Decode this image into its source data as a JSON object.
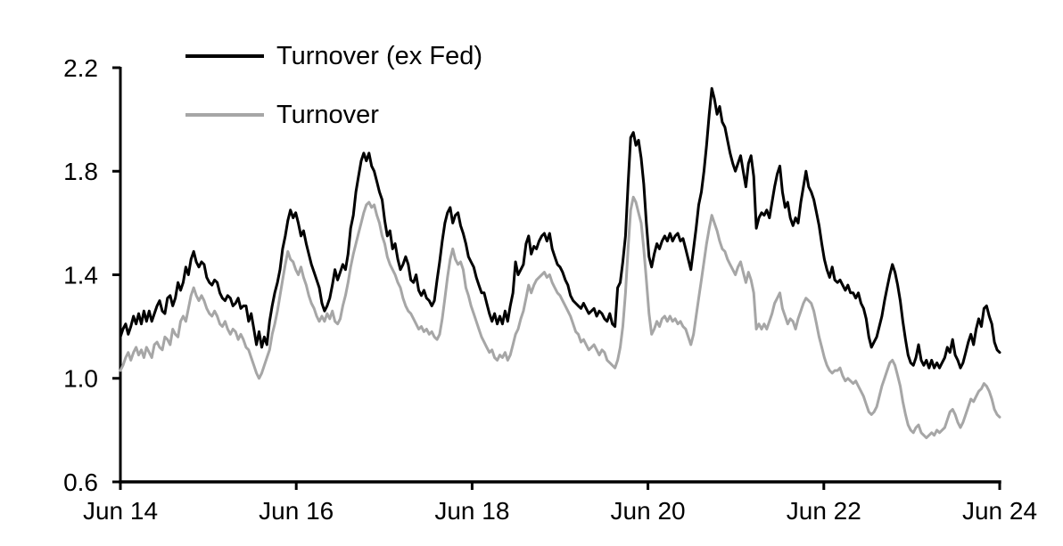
{
  "page": {
    "background": "#ffffff"
  },
  "chart_data": {
    "type": "line",
    "title": "",
    "xlabel": "",
    "ylabel": "",
    "grid": "off",
    "legend_position": "top-left-inside",
    "x_axis": {
      "tick_labels": [
        "Jun 14",
        "Jun 16",
        "Jun 18",
        "Jun 20",
        "Jun 22",
        "Jun 24"
      ],
      "unit": "date, Jun 2014 to Jun 2024, values sampled uniformly across this span"
    },
    "y_axis": {
      "tick_labels": [
        "0.6",
        "1.0",
        "1.4",
        "1.8",
        "2.2"
      ],
      "range": [
        0.6,
        2.2
      ]
    },
    "axis_color": "#000000",
    "series": [
      {
        "name": "Turnover (ex Fed)",
        "color": "#000000",
        "values": [
          1.16,
          1.19,
          1.21,
          1.17,
          1.2,
          1.24,
          1.21,
          1.25,
          1.21,
          1.26,
          1.22,
          1.26,
          1.22,
          1.25,
          1.28,
          1.3,
          1.26,
          1.25,
          1.31,
          1.32,
          1.28,
          1.31,
          1.37,
          1.34,
          1.37,
          1.43,
          1.4,
          1.46,
          1.49,
          1.45,
          1.43,
          1.45,
          1.44,
          1.39,
          1.37,
          1.36,
          1.38,
          1.37,
          1.33,
          1.31,
          1.3,
          1.32,
          1.31,
          1.28,
          1.29,
          1.31,
          1.27,
          1.28,
          1.28,
          1.22,
          1.25,
          1.19,
          1.13,
          1.18,
          1.12,
          1.16,
          1.13,
          1.22,
          1.28,
          1.33,
          1.37,
          1.42,
          1.5,
          1.55,
          1.61,
          1.65,
          1.62,
          1.64,
          1.6,
          1.55,
          1.57,
          1.52,
          1.48,
          1.44,
          1.41,
          1.38,
          1.35,
          1.29,
          1.26,
          1.28,
          1.31,
          1.36,
          1.42,
          1.38,
          1.41,
          1.44,
          1.42,
          1.48,
          1.58,
          1.63,
          1.72,
          1.78,
          1.84,
          1.87,
          1.84,
          1.87,
          1.82,
          1.8,
          1.76,
          1.72,
          1.69,
          1.61,
          1.55,
          1.57,
          1.5,
          1.52,
          1.46,
          1.42,
          1.44,
          1.47,
          1.44,
          1.38,
          1.37,
          1.4,
          1.34,
          1.32,
          1.34,
          1.31,
          1.3,
          1.28,
          1.3,
          1.38,
          1.45,
          1.53,
          1.6,
          1.64,
          1.66,
          1.6,
          1.63,
          1.64,
          1.59,
          1.56,
          1.52,
          1.47,
          1.45,
          1.43,
          1.39,
          1.36,
          1.33,
          1.33,
          1.29,
          1.25,
          1.22,
          1.25,
          1.21,
          1.24,
          1.21,
          1.26,
          1.22,
          1.28,
          1.33,
          1.45,
          1.4,
          1.42,
          1.44,
          1.52,
          1.55,
          1.48,
          1.51,
          1.5,
          1.53,
          1.55,
          1.56,
          1.53,
          1.56,
          1.5,
          1.47,
          1.44,
          1.43,
          1.41,
          1.38,
          1.36,
          1.32,
          1.3,
          1.29,
          1.28,
          1.27,
          1.29,
          1.27,
          1.25,
          1.26,
          1.27,
          1.24,
          1.26,
          1.25,
          1.23,
          1.22,
          1.25,
          1.21,
          1.2,
          1.35,
          1.37,
          1.45,
          1.55,
          1.75,
          1.93,
          1.95,
          1.9,
          1.92,
          1.85,
          1.75,
          1.6,
          1.47,
          1.43,
          1.48,
          1.52,
          1.5,
          1.53,
          1.55,
          1.53,
          1.56,
          1.53,
          1.55,
          1.56,
          1.53,
          1.54,
          1.5,
          1.46,
          1.42,
          1.5,
          1.58,
          1.67,
          1.72,
          1.8,
          1.9,
          2.02,
          2.12,
          2.08,
          2.02,
          2.05,
          1.99,
          1.97,
          1.92,
          1.87,
          1.83,
          1.8,
          1.83,
          1.86,
          1.8,
          1.74,
          1.83,
          1.86,
          1.78,
          1.58,
          1.62,
          1.64,
          1.63,
          1.65,
          1.62,
          1.68,
          1.74,
          1.79,
          1.82,
          1.72,
          1.66,
          1.68,
          1.62,
          1.59,
          1.62,
          1.6,
          1.68,
          1.74,
          1.8,
          1.74,
          1.72,
          1.69,
          1.64,
          1.59,
          1.52,
          1.46,
          1.42,
          1.39,
          1.43,
          1.38,
          1.37,
          1.38,
          1.36,
          1.34,
          1.36,
          1.33,
          1.33,
          1.31,
          1.33,
          1.29,
          1.27,
          1.23,
          1.16,
          1.12,
          1.14,
          1.16,
          1.2,
          1.24,
          1.3,
          1.35,
          1.4,
          1.44,
          1.41,
          1.36,
          1.3,
          1.22,
          1.15,
          1.09,
          1.06,
          1.05,
          1.08,
          1.13,
          1.07,
          1.05,
          1.07,
          1.04,
          1.07,
          1.04,
          1.06,
          1.04,
          1.06,
          1.08,
          1.12,
          1.1,
          1.15,
          1.09,
          1.07,
          1.04,
          1.06,
          1.1,
          1.14,
          1.17,
          1.13,
          1.19,
          1.23,
          1.2,
          1.27,
          1.28,
          1.24,
          1.21,
          1.14,
          1.11,
          1.1
        ]
      },
      {
        "name": "Turnover",
        "color": "#a6a6a6",
        "values": [
          1.03,
          1.05,
          1.08,
          1.1,
          1.07,
          1.1,
          1.12,
          1.09,
          1.11,
          1.08,
          1.12,
          1.1,
          1.08,
          1.13,
          1.14,
          1.12,
          1.11,
          1.16,
          1.15,
          1.13,
          1.19,
          1.17,
          1.16,
          1.22,
          1.24,
          1.22,
          1.27,
          1.32,
          1.35,
          1.32,
          1.3,
          1.32,
          1.3,
          1.27,
          1.25,
          1.24,
          1.26,
          1.24,
          1.21,
          1.2,
          1.22,
          1.19,
          1.17,
          1.19,
          1.18,
          1.15,
          1.17,
          1.15,
          1.12,
          1.11,
          1.08,
          1.05,
          1.02,
          1.0,
          1.02,
          1.05,
          1.08,
          1.11,
          1.17,
          1.21,
          1.26,
          1.32,
          1.38,
          1.44,
          1.49,
          1.46,
          1.45,
          1.42,
          1.4,
          1.43,
          1.39,
          1.36,
          1.32,
          1.29,
          1.27,
          1.24,
          1.22,
          1.24,
          1.22,
          1.25,
          1.23,
          1.26,
          1.22,
          1.21,
          1.23,
          1.28,
          1.32,
          1.37,
          1.43,
          1.48,
          1.52,
          1.56,
          1.6,
          1.64,
          1.67,
          1.68,
          1.66,
          1.67,
          1.63,
          1.6,
          1.55,
          1.52,
          1.47,
          1.44,
          1.42,
          1.4,
          1.37,
          1.35,
          1.31,
          1.28,
          1.26,
          1.25,
          1.23,
          1.21,
          1.19,
          1.2,
          1.18,
          1.19,
          1.17,
          1.18,
          1.16,
          1.15,
          1.17,
          1.23,
          1.31,
          1.39,
          1.46,
          1.5,
          1.46,
          1.44,
          1.45,
          1.42,
          1.35,
          1.32,
          1.28,
          1.25,
          1.22,
          1.19,
          1.16,
          1.14,
          1.12,
          1.1,
          1.11,
          1.08,
          1.07,
          1.09,
          1.08,
          1.1,
          1.07,
          1.09,
          1.13,
          1.17,
          1.19,
          1.23,
          1.26,
          1.31,
          1.36,
          1.33,
          1.36,
          1.38,
          1.39,
          1.4,
          1.41,
          1.39,
          1.4,
          1.37,
          1.35,
          1.33,
          1.32,
          1.3,
          1.28,
          1.26,
          1.24,
          1.21,
          1.18,
          1.17,
          1.14,
          1.15,
          1.13,
          1.11,
          1.12,
          1.13,
          1.11,
          1.09,
          1.11,
          1.1,
          1.07,
          1.06,
          1.05,
          1.04,
          1.07,
          1.12,
          1.2,
          1.33,
          1.5,
          1.65,
          1.7,
          1.68,
          1.64,
          1.6,
          1.5,
          1.38,
          1.25,
          1.17,
          1.19,
          1.22,
          1.2,
          1.23,
          1.24,
          1.22,
          1.24,
          1.22,
          1.23,
          1.21,
          1.22,
          1.2,
          1.19,
          1.16,
          1.13,
          1.17,
          1.24,
          1.31,
          1.38,
          1.45,
          1.52,
          1.58,
          1.63,
          1.6,
          1.57,
          1.53,
          1.5,
          1.49,
          1.46,
          1.44,
          1.42,
          1.4,
          1.43,
          1.45,
          1.41,
          1.37,
          1.41,
          1.38,
          1.33,
          1.19,
          1.21,
          1.19,
          1.21,
          1.19,
          1.22,
          1.25,
          1.29,
          1.31,
          1.33,
          1.27,
          1.24,
          1.21,
          1.23,
          1.22,
          1.19,
          1.23,
          1.26,
          1.29,
          1.31,
          1.3,
          1.29,
          1.26,
          1.21,
          1.16,
          1.12,
          1.08,
          1.05,
          1.03,
          1.02,
          1.03,
          1.03,
          1.04,
          1.01,
          0.99,
          1.0,
          0.99,
          0.98,
          0.99,
          0.97,
          0.95,
          0.93,
          0.9,
          0.87,
          0.86,
          0.87,
          0.89,
          0.93,
          0.97,
          1.0,
          1.03,
          1.06,
          1.07,
          1.05,
          1.01,
          0.97,
          0.91,
          0.86,
          0.82,
          0.8,
          0.79,
          0.81,
          0.82,
          0.79,
          0.78,
          0.77,
          0.78,
          0.79,
          0.78,
          0.8,
          0.79,
          0.8,
          0.81,
          0.84,
          0.87,
          0.88,
          0.86,
          0.83,
          0.81,
          0.83,
          0.86,
          0.89,
          0.92,
          0.91,
          0.93,
          0.95,
          0.96,
          0.98,
          0.97,
          0.95,
          0.92,
          0.88,
          0.86,
          0.85
        ]
      }
    ]
  }
}
